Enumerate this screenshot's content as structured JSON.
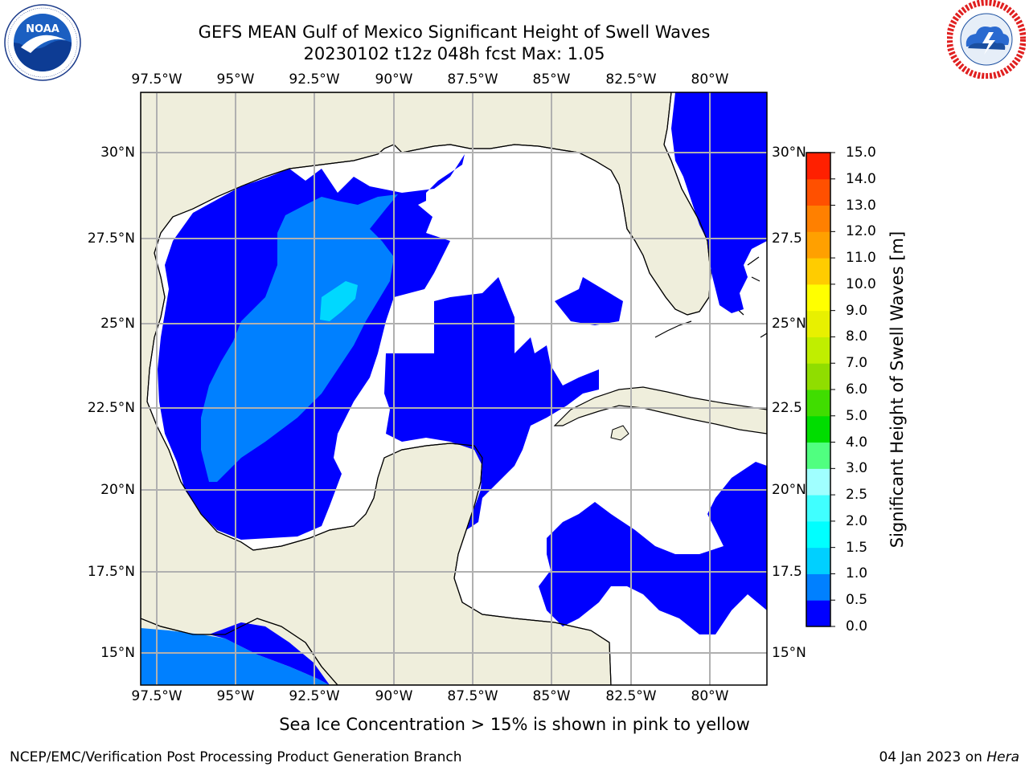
{
  "header": {
    "title_line1": "GEFS MEAN Gulf of Mexico Significant Height of Swell Waves",
    "title_line2": "20230102 t12z 048h fcst   Max: 1.05"
  },
  "logos": {
    "left": {
      "text": "NOAA",
      "ring_text": "NATIONAL OCEANIC AND ATMOSPHERIC ADMINISTRATION · U.S. DEPARTMENT OF COMMERCE"
    },
    "right": {
      "ring_text": "NATIONAL WEATHER SERVICE"
    }
  },
  "map": {
    "lon_labels": [
      "97.5°W",
      "95°W",
      "92.5°W",
      "90°W",
      "87.5°W",
      "85°W",
      "82.5°W",
      "80°W"
    ],
    "lat_labels_left": [
      "30°N",
      "27.5°N",
      "25°N",
      "22.5°N",
      "20°N",
      "17.5°N",
      "15°N"
    ],
    "lat_labels_right": [
      "30°N",
      "27.5",
      "25°N",
      "22.5",
      "20°N",
      "17.5",
      "15°N"
    ],
    "colors": {
      "land": "#efeedc",
      "ocean_none": "#ffffff",
      "grid": "#b0b0b0",
      "coast": "#000000"
    }
  },
  "colorbar": {
    "label": "Significant Height of Swell Waves [m]",
    "ticks": [
      "0.0",
      "0.5",
      "1.0",
      "1.5",
      "2.0",
      "2.5",
      "3.0",
      "4.0",
      "5.0",
      "6.0",
      "7.0",
      "8.0",
      "9.0",
      "10.0",
      "11.0",
      "12.0",
      "13.0",
      "14.0",
      "15.0"
    ],
    "colors": [
      "#0000ff",
      "#0080ff",
      "#00d0ff",
      "#00ffff",
      "#40ffff",
      "#a0ffff",
      "#50ff80",
      "#00dd00",
      "#40dd00",
      "#90dd00",
      "#c0ee00",
      "#e8f000",
      "#ffff00",
      "#ffcc00",
      "#ffa000",
      "#ff8000",
      "#ff5000",
      "#ff2000",
      "#ff0000"
    ]
  },
  "note": "Sea Ice Concentration > 15% is shown in pink to yellow",
  "footer": {
    "left": "NCEP/EMC/Verification Post Processing Product Generation Branch",
    "right_prefix": "04 Jan 2023 on ",
    "right_italic": "Hera"
  }
}
